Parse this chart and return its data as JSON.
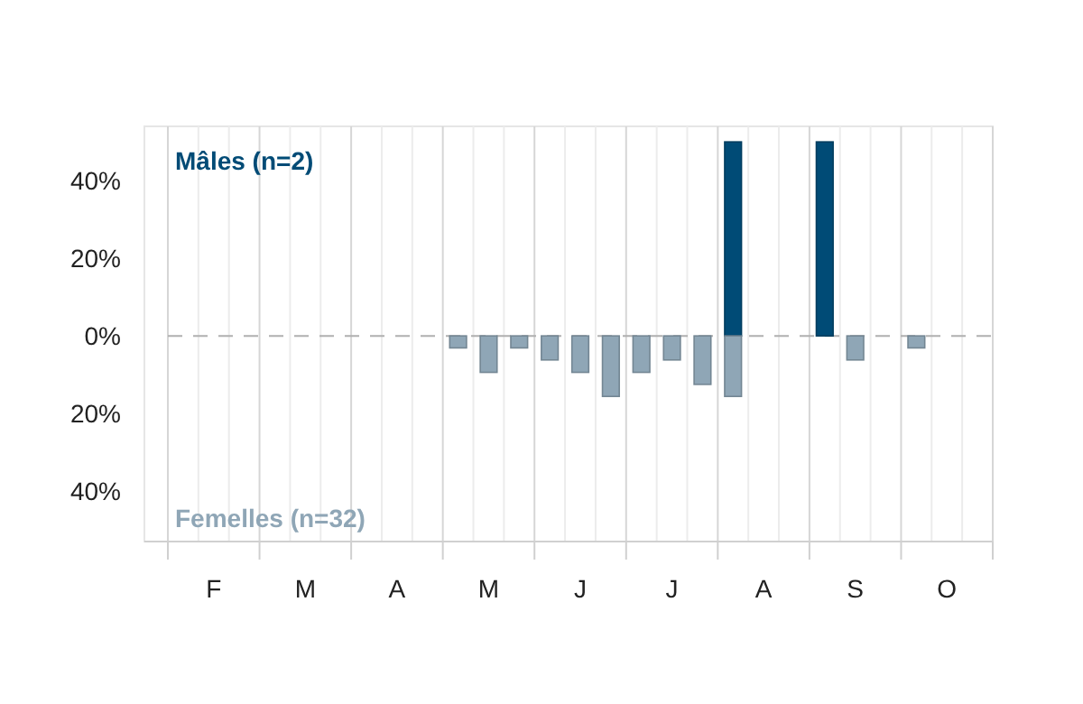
{
  "chart_data": {
    "type": "bar",
    "categories": [
      null,
      "F",
      null,
      null,
      "M",
      null,
      null,
      "A",
      null,
      null,
      "M",
      null,
      null,
      "J",
      null,
      null,
      "J",
      null,
      null,
      "A",
      null,
      null,
      "S",
      null,
      null,
      "O",
      null
    ],
    "series": [
      {
        "name": "Mâles (n=2)",
        "color": "#004b76",
        "values": [
          null,
          null,
          null,
          null,
          null,
          null,
          null,
          null,
          null,
          null,
          null,
          null,
          null,
          null,
          null,
          null,
          null,
          null,
          50,
          null,
          null,
          50,
          null,
          null,
          null,
          null,
          null
        ]
      },
      {
        "name": "Femelles (n=32)",
        "color": "#8fa6b6",
        "values": [
          null,
          null,
          null,
          null,
          null,
          null,
          null,
          null,
          null,
          -3.1,
          -9.4,
          -3.1,
          -6.2,
          -9.4,
          -15.6,
          -9.4,
          -6.2,
          -12.5,
          -15.6,
          null,
          null,
          null,
          -6.2,
          null,
          -3.1,
          null,
          null
        ]
      }
    ],
    "ylim": [
      -53,
      54
    ],
    "yticks": [
      {
        "value": -40,
        "label": "40%"
      },
      {
        "value": -20,
        "label": "20%"
      },
      {
        "value": 0,
        "label": "0%"
      },
      {
        "value": 20,
        "label": "20%"
      },
      {
        "value": 40,
        "label": "40%"
      }
    ],
    "grid": "x",
    "ref_lines": [
      {
        "axis": "y",
        "value": 0,
        "label": null,
        "color": "#b0b0b0",
        "line_style": "dashed"
      }
    ]
  }
}
